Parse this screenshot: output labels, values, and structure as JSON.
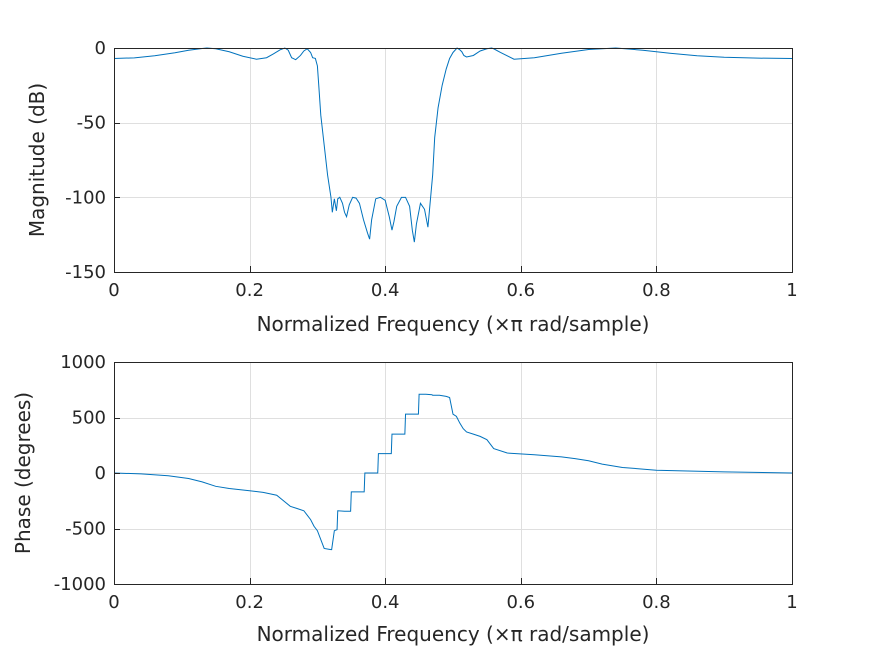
{
  "chart_data": [
    {
      "type": "line",
      "title": "",
      "xlabel": "Normalized Frequency  (×π rad/sample)",
      "ylabel": "Magnitude (dB)",
      "xlim": [
        0,
        1
      ],
      "ylim": [
        -150,
        0
      ],
      "xticks": [
        0,
        0.2,
        0.4,
        0.6,
        0.8,
        1
      ],
      "xtick_labels": [
        "0",
        "0.2",
        "0.4",
        "0.6",
        "0.8",
        "1"
      ],
      "yticks": [
        0,
        -50,
        -100,
        -150
      ],
      "ytick_labels": [
        "0",
        "-50",
        "-100",
        "-150"
      ],
      "grid": true,
      "line_color": "#0072bd",
      "series": [
        {
          "x": [
            0,
            0.03,
            0.06,
            0.09,
            0.11,
            0.13,
            0.137,
            0.15,
            0.17,
            0.19,
            0.21,
            0.225,
            0.235,
            0.245,
            0.252,
            0.257,
            0.262,
            0.268,
            0.275,
            0.28,
            0.285,
            0.29,
            0.293,
            0.297,
            0.3,
            0.302,
            0.305,
            0.31,
            0.315,
            0.32,
            0.322,
            0.325,
            0.328,
            0.33,
            0.333,
            0.337,
            0.34,
            0.343,
            0.347,
            0.352,
            0.357,
            0.362,
            0.368,
            0.374,
            0.377,
            0.38,
            0.386,
            0.393,
            0.4,
            0.406,
            0.41,
            0.413,
            0.417,
            0.424,
            0.43,
            0.436,
            0.44,
            0.443,
            0.446,
            0.452,
            0.458,
            0.463,
            0.465,
            0.467,
            0.47,
            0.473,
            0.478,
            0.484,
            0.49,
            0.495,
            0.5,
            0.503,
            0.506,
            0.51,
            0.513,
            0.516,
            0.52,
            0.53,
            0.54,
            0.55,
            0.557,
            0.56,
            0.57,
            0.59,
            0.62,
            0.66,
            0.7,
            0.74,
            0.78,
            0.82,
            0.86,
            0.9,
            0.95,
            1.0
          ],
          "y": [
            -7,
            -6.6,
            -5.2,
            -3.2,
            -1.5,
            -0.3,
            0,
            -0.5,
            -2.5,
            -5.5,
            -7.5,
            -6.5,
            -4,
            -1.2,
            0,
            -1.5,
            -6.5,
            -7.8,
            -5,
            -2,
            -0.5,
            -3,
            -6.5,
            -7,
            -12,
            -25,
            -45,
            -65,
            -85,
            -100,
            -110,
            -101,
            -109,
            -101,
            -100,
            -104,
            -110,
            -113,
            -105,
            -100,
            -100.5,
            -104,
            -115,
            -124,
            -128,
            -115,
            -101,
            -100,
            -102,
            -113,
            -122,
            -116,
            -106,
            -100,
            -100,
            -106,
            -122,
            -130,
            -118,
            -104,
            -108,
            -120,
            -110,
            -100,
            -85,
            -60,
            -40,
            -25,
            -14,
            -7,
            -3,
            -1.5,
            0,
            -1.2,
            -2.5,
            -5,
            -6,
            -5,
            -2,
            -0.5,
            0,
            -0.5,
            -3,
            -7.5,
            -6.5,
            -3.5,
            -1,
            0,
            -1.5,
            -3.5,
            -5.2,
            -6.2,
            -6.8,
            -7
          ]
        }
      ]
    },
    {
      "type": "line",
      "title": "",
      "xlabel": "Normalized Frequency  (×π rad/sample)",
      "ylabel": "Phase (degrees)",
      "xlim": [
        0,
        1
      ],
      "ylim": [
        -1000,
        1000
      ],
      "xticks": [
        0,
        0.2,
        0.4,
        0.6,
        0.8,
        1
      ],
      "xtick_labels": [
        "0",
        "0.2",
        "0.4",
        "0.6",
        "0.8",
        "1"
      ],
      "yticks": [
        1000,
        500,
        0,
        -500,
        -1000
      ],
      "ytick_labels": [
        "1000",
        "500",
        "0",
        "-500",
        "-1000"
      ],
      "grid": true,
      "line_color": "#0072bd",
      "series": [
        {
          "x": [
            0,
            0.04,
            0.08,
            0.11,
            0.13,
            0.15,
            0.17,
            0.2,
            0.22,
            0.24,
            0.25,
            0.26,
            0.27,
            0.28,
            0.285,
            0.29,
            0.295,
            0.3,
            0.31,
            0.32,
            0.321,
            0.325,
            0.329,
            0.33,
            0.34,
            0.349,
            0.35,
            0.36,
            0.369,
            0.37,
            0.38,
            0.389,
            0.39,
            0.4,
            0.409,
            0.41,
            0.42,
            0.429,
            0.43,
            0.44,
            0.449,
            0.45,
            0.46,
            0.469,
            0.47,
            0.48,
            0.49,
            0.495,
            0.5,
            0.505,
            0.51,
            0.515,
            0.52,
            0.53,
            0.54,
            0.55,
            0.56,
            0.58,
            0.62,
            0.66,
            0.68,
            0.7,
            0.72,
            0.75,
            0.8,
            0.9,
            1.0
          ],
          "y": [
            0,
            -8,
            -25,
            -50,
            -80,
            -120,
            -140,
            -160,
            -175,
            -200,
            -250,
            -300,
            -320,
            -340,
            -380,
            -420,
            -480,
            -520,
            -680,
            -690,
            -690,
            -520,
            -510,
            -340,
            -345,
            -345,
            -170,
            -170,
            -170,
            0,
            0,
            0,
            175,
            175,
            175,
            350,
            350,
            350,
            530,
            530,
            530,
            710,
            710,
            705,
            700,
            700,
            690,
            680,
            530,
            510,
            450,
            400,
            370,
            350,
            330,
            300,
            220,
            180,
            165,
            145,
            130,
            110,
            80,
            50,
            25,
            10,
            0
          ]
        }
      ]
    }
  ]
}
